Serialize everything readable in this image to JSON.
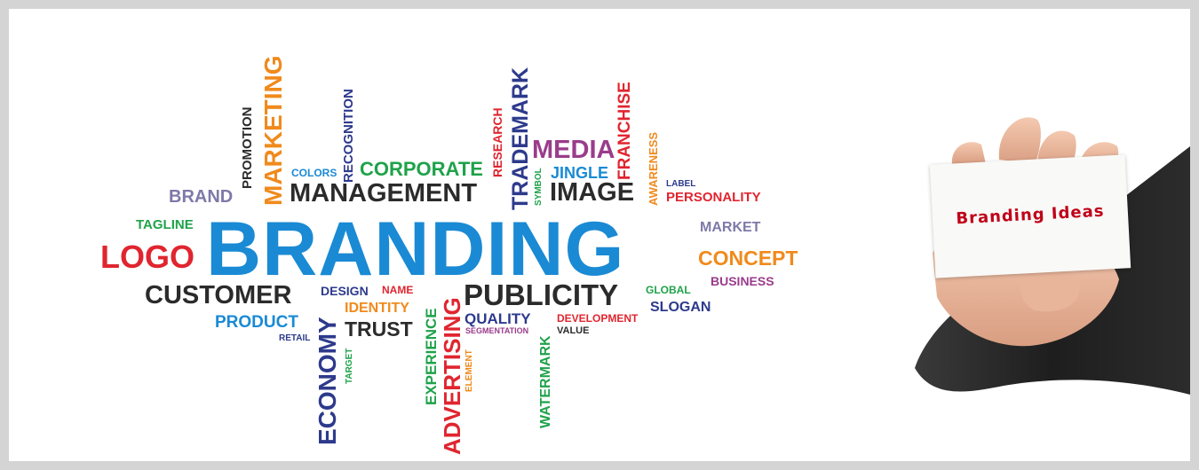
{
  "words": {
    "branding": "BRANDING",
    "logo": "LOGO",
    "tagline": "TAGLINE",
    "brand": "BRAND",
    "management": "MANAGEMENT",
    "corporate": "CORPORATE",
    "colors": "COLORS",
    "media": "MEDIA",
    "jingle": "JINGLE",
    "image": "IMAGE",
    "label": "LABEL",
    "personality": "PERSONALITY",
    "market": "MARKET",
    "concept": "CONCEPT",
    "business": "BUSINESS",
    "customer": "CUSTOMER",
    "product": "PRODUCT",
    "retail": "RETAIL",
    "design": "DESIGN",
    "name": "NAME",
    "identity": "IDENTITY",
    "trust": "TRUST",
    "publicity": "PUBLICITY",
    "quality": "QUALITY",
    "segmentation": "SEGMENTATION",
    "development": "DEVELOPMENT",
    "value": "VALUE",
    "global": "GLOBAL",
    "slogan": "SLOGAN",
    "promotion": "PROMOTION",
    "marketing": "MARKETING",
    "recognition": "RECOGNITION",
    "research": "RESEARCH",
    "trademark": "TRADEMARK",
    "symbol": "SYMBOL",
    "franchise": "FRANCHISE",
    "awareness": "AWARENESS",
    "economy": "ECONOMY",
    "target": "TARGET",
    "experience": "EXPERIENCE",
    "advertising": "ADVERTISING",
    "element": "ELEMENT",
    "watermark": "WATERMARK"
  },
  "card": {
    "text": "Branding Ideas"
  },
  "colors": {
    "blue": "#1a8ad4",
    "red": "#e0252f",
    "dark": "#2b2b2b",
    "navy": "#2d3a8c",
    "orange": "#f08a1c",
    "green": "#1fa24a",
    "purple": "#9a3c8c",
    "gray_purple": "#7e79a8",
    "card_text": "#c00018"
  }
}
